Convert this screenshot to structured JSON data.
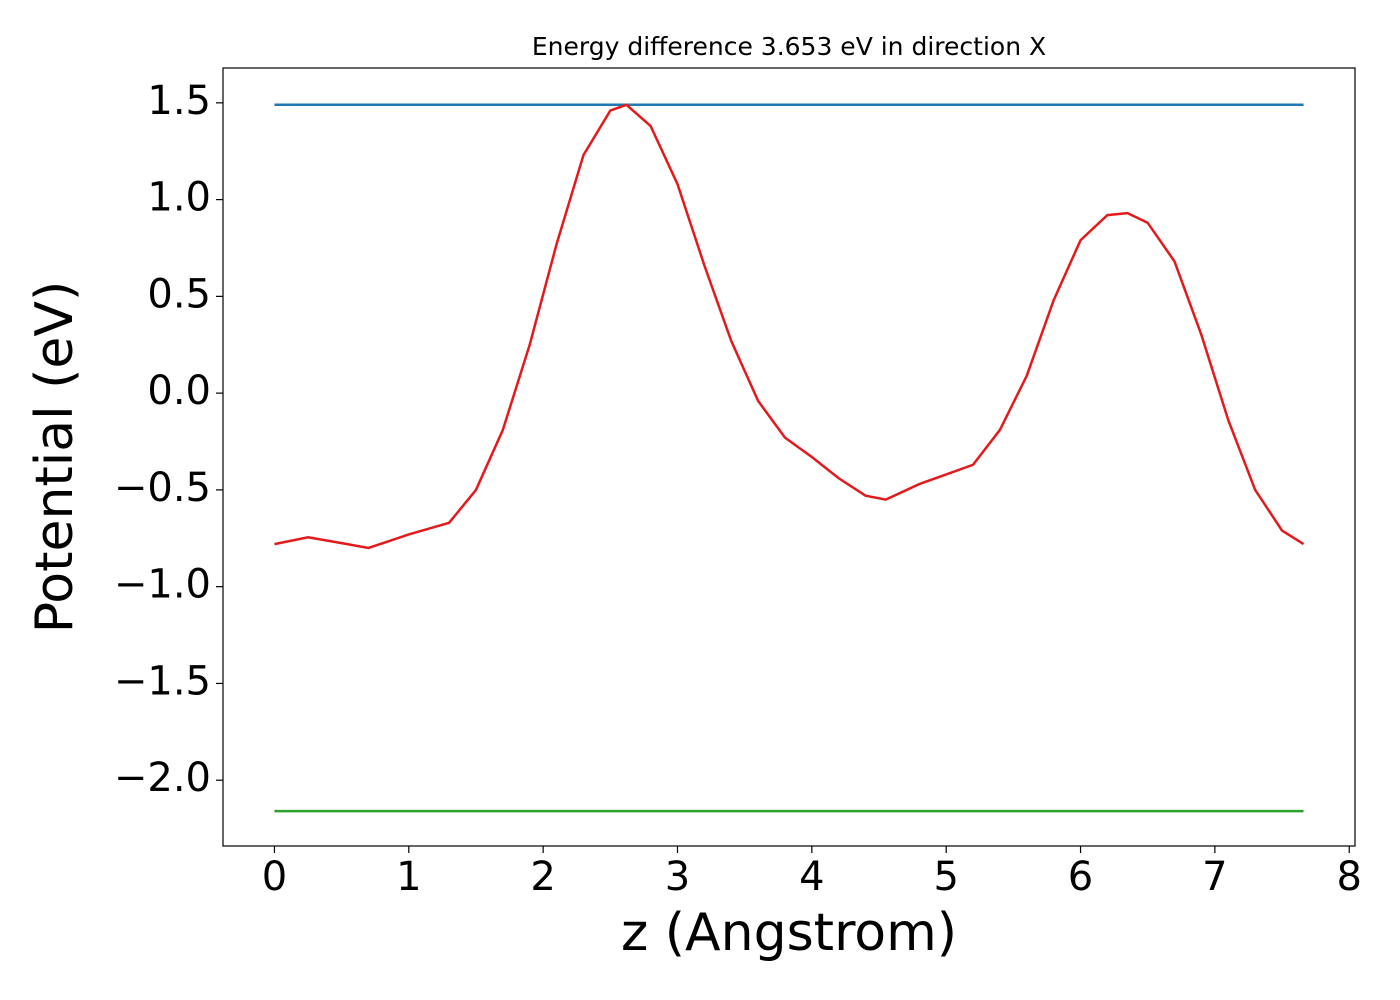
{
  "chart_data": {
    "type": "line",
    "title": "Energy difference 3.653 eV in direction X",
    "x_label": "z (Angstrom)",
    "y_label": "Potential (eV)",
    "xlim": [
      -0.383,
      8.043
    ],
    "ylim": [
      -2.34,
      1.68
    ],
    "xticks": [
      0,
      1,
      2,
      3,
      4,
      5,
      6,
      7,
      8
    ],
    "yticks": [
      1.5,
      {
        "value": 1,
        "label": "1.0"
      },
      0.5,
      {
        "value": 0,
        "label": "0.0"
      },
      {
        "value": -0.5,
        "label": "−0.5"
      },
      {
        "value": -1,
        "label": "−1.0"
      },
      {
        "value": -1.5,
        "label": "−1.5"
      },
      {
        "value": -2,
        "label": "−2.0"
      }
    ],
    "series": [
      {
        "color": "#1f77b4",
        "x": [
          0,
          7.66
        ],
        "values": [
          1.49,
          1.49
        ]
      },
      {
        "color": "#2ca02c",
        "x": [
          0,
          7.66
        ],
        "values": [
          -2.16,
          -2.16
        ]
      },
      {
        "color": "#e31a1c",
        "x": [
          0,
          0.25,
          0.5,
          0.7,
          1.0,
          1.3,
          1.5,
          1.7,
          1.9,
          2.1,
          2.3,
          2.5,
          2.62,
          2.8,
          3.0,
          3.2,
          3.4,
          3.6,
          3.8,
          4.0,
          4.2,
          4.4,
          4.55,
          4.8,
          5.0,
          5.2,
          5.4,
          5.6,
          5.8,
          6.0,
          6.2,
          6.35,
          6.5,
          6.7,
          6.9,
          7.1,
          7.3,
          7.5,
          7.66
        ],
        "values": [
          -0.78,
          -0.745,
          -0.775,
          -0.8,
          -0.73,
          -0.67,
          -0.5,
          -0.19,
          0.25,
          0.77,
          1.23,
          1.46,
          1.49,
          1.38,
          1.08,
          0.66,
          0.27,
          -0.04,
          -0.23,
          -0.33,
          -0.44,
          -0.53,
          -0.55,
          -0.47,
          -0.42,
          -0.37,
          -0.19,
          0.09,
          0.48,
          0.79,
          0.92,
          0.93,
          0.88,
          0.68,
          0.3,
          -0.14,
          -0.5,
          -0.71,
          -0.78
        ]
      }
    ]
  }
}
